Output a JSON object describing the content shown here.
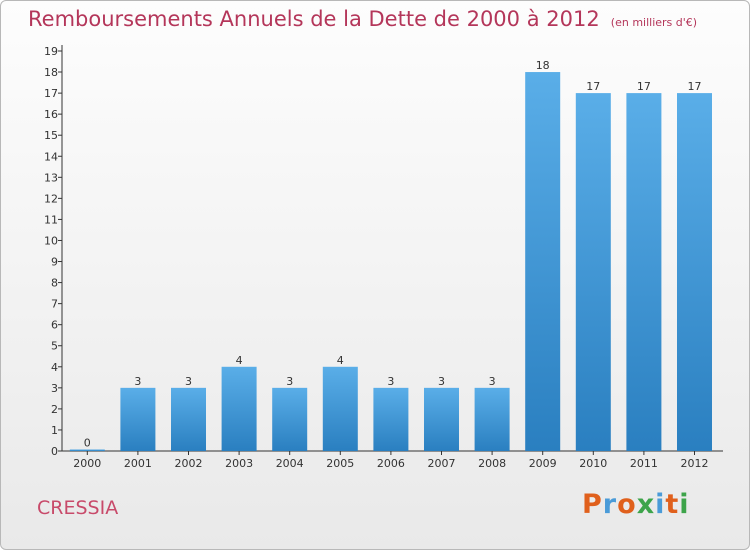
{
  "header": {
    "title": "Remboursements Annuels de la Dette de 2000 à 2012",
    "subtitle": "(en milliers d'€)"
  },
  "footer": {
    "commune": "CRESSIA",
    "brand": "Proxiti",
    "brand_colors": [
      "#e0601c",
      "#4a9bd8",
      "#e0601c",
      "#3da44a",
      "#4a9bd8",
      "#e0601c",
      "#3da44a"
    ]
  },
  "colors": {
    "bar_top": "#5aaee8",
    "bar_bottom": "#2a7fc0",
    "title": "#b4365a"
  },
  "chart_data": {
    "type": "bar",
    "categories": [
      "2000",
      "2001",
      "2002",
      "2003",
      "2004",
      "2005",
      "2006",
      "2007",
      "2008",
      "2009",
      "2010",
      "2011",
      "2012"
    ],
    "values": [
      0,
      3,
      3,
      4,
      3,
      4,
      3,
      3,
      3,
      18,
      17,
      17,
      17
    ],
    "data_labels": [
      "0",
      "3",
      "3",
      "4",
      "3",
      "4",
      "3",
      "3",
      "3",
      "18",
      "17",
      "17",
      "17"
    ],
    "ylim": [
      0,
      19
    ],
    "yticks": [
      "0",
      "1",
      "2",
      "3",
      "4",
      "5",
      "6",
      "7",
      "8",
      "9",
      "10",
      "11",
      "12",
      "13",
      "14",
      "15",
      "16",
      "17",
      "18",
      "19"
    ],
    "grid": false,
    "xlabel": "",
    "ylabel": ""
  }
}
